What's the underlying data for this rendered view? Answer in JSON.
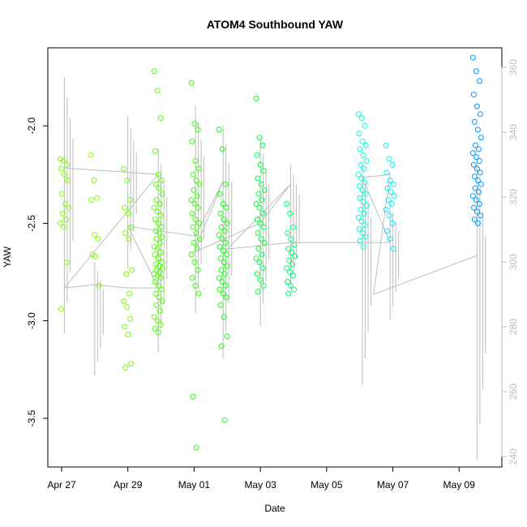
{
  "chart_data": {
    "type": "scatter",
    "title": "ATOM4 Southbound YAW",
    "xlabel": "Date",
    "ylabel": "YAW",
    "xlim": [
      "2012-04-26T14:00",
      "2012-05-10T07:00"
    ],
    "ylim": [
      -3.75,
      -1.6
    ],
    "y2lim": [
      236.8,
      366.0
    ],
    "x_ticks": [
      {
        "date": "2012-04-27",
        "label": "Apr 27"
      },
      {
        "date": "2012-04-29",
        "label": "Apr 29"
      },
      {
        "date": "2012-05-01",
        "label": "May 01"
      },
      {
        "date": "2012-05-03",
        "label": "May 03"
      },
      {
        "date": "2012-05-05",
        "label": "May 05"
      },
      {
        "date": "2012-05-07",
        "label": "May 07"
      },
      {
        "date": "2012-05-09",
        "label": "May 09"
      }
    ],
    "y_ticks": [
      {
        "value": -2.0,
        "label": "-2.0"
      },
      {
        "value": -2.5,
        "label": "-2.5"
      },
      {
        "value": -3.0,
        "label": "-3.0"
      },
      {
        "value": -3.5,
        "label": "-3.5"
      }
    ],
    "y2_ticks": [
      {
        "value": 240,
        "label": "240"
      },
      {
        "value": 260,
        "label": "260"
      },
      {
        "value": 280,
        "label": "280"
      },
      {
        "value": 300,
        "label": "300"
      },
      {
        "value": 320,
        "label": "320"
      },
      {
        "value": 340,
        "label": "340"
      },
      {
        "value": 360,
        "label": "360"
      }
    ],
    "secondary_axis_color": "#bdbdbd",
    "grid": false,
    "point_series": [
      {
        "date": "2012-04-27T02:00",
        "color": "#80ff00",
        "values": [
          -2.17,
          -2.18,
          -2.2,
          -2.22,
          -2.25,
          -2.28,
          -2.35,
          -2.4,
          -2.42,
          -2.45,
          -2.48,
          -2.5,
          -2.52,
          -2.7,
          -2.94
        ]
      },
      {
        "date": "2012-04-28T00:00",
        "color": "#80ff00",
        "values": [
          -2.15,
          -2.28,
          -2.37,
          -2.38,
          -2.56,
          -2.58,
          -2.66,
          -2.67,
          -2.82
        ]
      },
      {
        "date": "2012-04-29T00:00",
        "color": "#70ff00",
        "values": [
          -2.22,
          -2.28,
          -2.38,
          -2.42,
          -2.45,
          -2.52,
          -2.55,
          -2.58,
          -2.74,
          -2.76,
          -2.86,
          -2.9,
          -2.93,
          -2.99,
          -3.03,
          -3.07,
          -3.22,
          -3.24
        ]
      },
      {
        "date": "2012-04-29T22:00",
        "color": "#50ff00",
        "values": [
          -1.72,
          -1.82,
          -1.96,
          -2.13,
          -2.25,
          -2.28,
          -2.3,
          -2.32,
          -2.35,
          -2.38,
          -2.4,
          -2.42,
          -2.44,
          -2.46,
          -2.48,
          -2.5,
          -2.52,
          -2.54,
          -2.55,
          -2.57,
          -2.58,
          -2.6,
          -2.62,
          -2.63,
          -2.65,
          -2.66,
          -2.68,
          -2.7,
          -2.71,
          -2.72,
          -2.73,
          -2.74,
          -2.75,
          -2.76,
          -2.77,
          -2.78,
          -2.8,
          -2.82,
          -2.84,
          -2.86,
          -2.88,
          -2.9,
          -2.92,
          -2.95,
          -2.98,
          -3.0,
          -3.02,
          -3.04,
          -3.06
        ]
      },
      {
        "date": "2012-05-01T01:00",
        "color": "#30ff00",
        "values": [
          -1.78,
          -1.99,
          -2.02,
          -2.08,
          -2.18,
          -2.22,
          -2.25,
          -2.28,
          -2.3,
          -2.33,
          -2.36,
          -2.38,
          -2.4,
          -2.42,
          -2.45,
          -2.48,
          -2.5,
          -2.52,
          -2.55,
          -2.58,
          -2.6,
          -2.63,
          -2.66,
          -2.7,
          -2.74,
          -2.78,
          -2.82,
          -2.86,
          -3.39,
          -3.65
        ]
      },
      {
        "date": "2012-05-01T21:00",
        "color": "#10ff10",
        "values": [
          -2.02,
          -2.12,
          -2.3,
          -2.35,
          -2.4,
          -2.42,
          -2.45,
          -2.48,
          -2.5,
          -2.52,
          -2.54,
          -2.56,
          -2.58,
          -2.6,
          -2.62,
          -2.64,
          -2.66,
          -2.68,
          -2.7,
          -2.72,
          -2.74,
          -2.76,
          -2.78,
          -2.8,
          -2.82,
          -2.84,
          -2.86,
          -2.88,
          -2.92,
          -2.98,
          -3.08,
          -3.13,
          -3.51
        ]
      },
      {
        "date": "2012-05-03T00:00",
        "color": "#00ff40",
        "values": [
          -1.86,
          -2.06,
          -2.1,
          -2.15,
          -2.2,
          -2.23,
          -2.27,
          -2.3,
          -2.33,
          -2.35,
          -2.38,
          -2.4,
          -2.42,
          -2.45,
          -2.48,
          -2.5,
          -2.52,
          -2.55,
          -2.58,
          -2.6,
          -2.63,
          -2.66,
          -2.68,
          -2.7,
          -2.73,
          -2.76,
          -2.79,
          -2.82,
          -2.85
        ]
      },
      {
        "date": "2012-05-03T22:00",
        "color": "#00ff70",
        "values": [
          -2.4,
          -2.45,
          -2.52,
          -2.55,
          -2.58,
          -2.61,
          -2.63,
          -2.65,
          -2.67,
          -2.69,
          -2.71,
          -2.73,
          -2.75,
          -2.77,
          -2.8,
          -2.82,
          -2.84,
          -2.86
        ]
      },
      {
        "date": "2012-05-06T02:00",
        "color": "#00ffdd",
        "values": [
          -1.94,
          -1.96,
          -2.0,
          -2.04,
          -2.08,
          -2.1,
          -2.12,
          -2.15,
          -2.18,
          -2.2,
          -2.22,
          -2.25,
          -2.27,
          -2.29,
          -2.31,
          -2.33,
          -2.35,
          -2.37,
          -2.39,
          -2.41,
          -2.43,
          -2.45,
          -2.47,
          -2.49,
          -2.51,
          -2.53,
          -2.55,
          -2.57,
          -2.59,
          -2.62
        ]
      },
      {
        "date": "2012-05-06T22:00",
        "color": "#00eeff",
        "values": [
          -2.1,
          -2.17,
          -2.2,
          -2.24,
          -2.28,
          -2.3,
          -2.32,
          -2.34,
          -2.36,
          -2.38,
          -2.4,
          -2.43,
          -2.46,
          -2.5,
          -2.54,
          -2.58,
          -2.63
        ]
      },
      {
        "date": "2012-05-09T13:00",
        "color": "#0099ff",
        "values": [
          -1.65,
          -1.72,
          -1.77,
          -1.84,
          -1.9,
          -1.94,
          -1.98,
          -2.02,
          -2.06,
          -2.1,
          -2.12,
          -2.14,
          -2.16,
          -2.18,
          -2.2,
          -2.22,
          -2.24,
          -2.26,
          -2.28,
          -2.3,
          -2.32,
          -2.34,
          -2.36,
          -2.38,
          -2.4,
          -2.42,
          -2.44,
          -2.46,
          -2.48,
          -2.5
        ]
      }
    ],
    "line_series": {
      "axis": "right",
      "color": "#bdbdbd",
      "spikes": [
        {
          "date": "2012-04-27T02:00",
          "low": 278,
          "high": 357
        },
        {
          "date": "2012-04-28T00:00",
          "low": 265,
          "high": 300
        },
        {
          "date": "2012-04-29T00:00",
          "low": 298,
          "high": 345
        },
        {
          "date": "2012-04-29T22:00",
          "low": 272,
          "high": 335
        },
        {
          "date": "2012-05-01T01:00",
          "low": 284,
          "high": 348
        },
        {
          "date": "2012-05-01T21:00",
          "low": 270,
          "high": 342
        },
        {
          "date": "2012-05-03T00:00",
          "low": 280,
          "high": 338
        },
        {
          "date": "2012-05-03T22:00",
          "low": 292,
          "high": 330
        },
        {
          "date": "2012-05-06T02:00",
          "low": 262,
          "high": 330
        },
        {
          "date": "2012-05-06T22:00",
          "low": 282,
          "high": 318
        },
        {
          "date": "2012-05-09T13:00",
          "low": 239,
          "high": 330
        }
      ],
      "path": [
        {
          "date": "2012-04-27T02:00",
          "value": 329
        },
        {
          "date": "2012-04-29T22:00",
          "value": 327
        },
        {
          "date": "2012-04-27T02:00",
          "value": 292
        },
        {
          "date": "2012-04-28T00:00",
          "value": 293
        },
        {
          "date": "2012-04-29T00:00",
          "value": 292
        },
        {
          "date": "2012-04-29T22:00",
          "value": 292
        },
        {
          "date": "2012-04-29T00:00",
          "value": 311
        },
        {
          "date": "2012-05-01T01:00",
          "value": 308
        },
        {
          "date": "2012-05-01T21:00",
          "value": 325
        },
        {
          "date": "2012-05-01T00:00",
          "value": 303
        },
        {
          "date": "2012-05-03T00:00",
          "value": 312
        },
        {
          "date": "2012-05-03T22:00",
          "value": 324
        },
        {
          "date": "2012-05-02T00:00",
          "value": 304
        },
        {
          "date": "2012-05-03T22:00",
          "value": 306
        },
        {
          "date": "2012-05-06T22:00",
          "value": 306
        },
        {
          "date": "2012-05-06T02:00",
          "value": 326
        },
        {
          "date": "2012-05-06T22:00",
          "value": 327
        },
        {
          "date": "2012-05-06T10:00",
          "value": 290
        },
        {
          "date": "2012-05-09T13:00",
          "value": 302
        }
      ]
    }
  }
}
